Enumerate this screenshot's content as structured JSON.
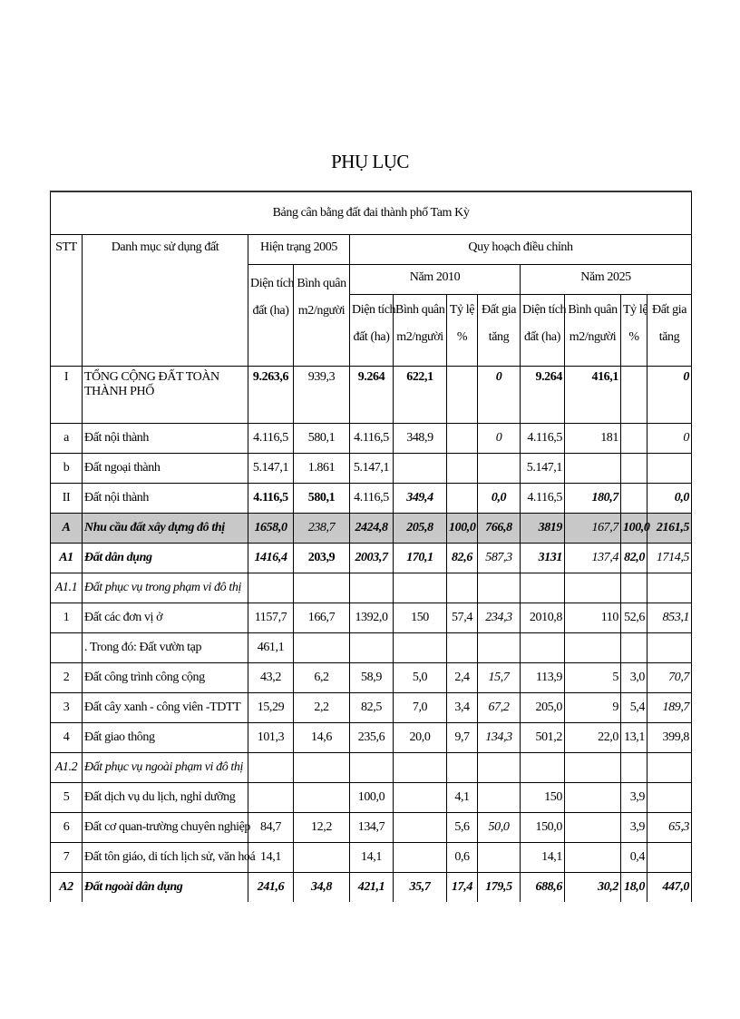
{
  "page_title": "PHỤ LỤC",
  "table": {
    "caption": "Bảng cân bằng đất đai thành phố Tam Kỳ",
    "headers": {
      "stt": "STT",
      "category": "Danh mục sử dụng đất",
      "current_2005": "Hiện trạng 2005",
      "adjusted_plan": "Quy hoạch điều chỉnh",
      "year_2010": "Năm 2010",
      "year_2025": "Năm 2025",
      "area_line1": "Diện tích",
      "area_line2": "đất (ha)",
      "avg_line1": "Bình quân",
      "avg_line2": "m2/người",
      "ratio_line1": "Tỷ lệ",
      "ratio_line2": "%",
      "increase_line1": "Đất gia",
      "increase_line2": "tăng"
    },
    "rows": [
      {
        "stt": "I",
        "name": "TỔNG CỘNG ĐẤT TOÀN THÀNH PHỐ",
        "v": [
          "9.263,6",
          "939,3",
          "9.264",
          "622,1",
          "",
          "0",
          "9.264",
          "416,1",
          "",
          "0"
        ]
      },
      {
        "stt": "a",
        "name": "Đất nội thành",
        "v": [
          "4.116,5",
          "580,1",
          "4.116,5",
          "348,9",
          "",
          "0",
          "4.116,5",
          "181",
          "",
          "0"
        ]
      },
      {
        "stt": "b",
        "name": "Đất ngoại thành",
        "v": [
          "5.147,1",
          "1.861",
          "5.147,1",
          "",
          "",
          "",
          "5.147,1",
          "",
          "",
          ""
        ]
      },
      {
        "stt": "II",
        "name": "Đất nội thành",
        "v": [
          "4.116,5",
          "580,1",
          "4.116,5",
          "349,4",
          "",
          "0,0",
          "4.116,5",
          "180,7",
          "",
          "0,0"
        ]
      },
      {
        "stt": "A",
        "name": "Nhu cầu đất xây dựng đô thị",
        "v": [
          "1658,0",
          "238,7",
          "2424,8",
          "205,8",
          "100,0",
          "766,8",
          "3819",
          "167,7",
          "100,0",
          "2161,5"
        ]
      },
      {
        "stt": "A1",
        "name": "Đất dân dụng",
        "v": [
          "1416,4",
          "203,9",
          "2003,7",
          "170,1",
          "82,6",
          "587,3",
          "3131",
          "137,4",
          "82,0",
          "1714,5"
        ]
      },
      {
        "stt": "A1.1",
        "name": "Đất phục vụ trong phạm vi đô thị",
        "v": [
          "",
          "",
          "",
          "",
          "",
          "",
          "",
          "",
          "",
          ""
        ]
      },
      {
        "stt": "1",
        "name": "Đất các đơn vị ở",
        "v": [
          "1157,7",
          "166,7",
          "1392,0",
          "150",
          "57,4",
          "234,3",
          "2010,8",
          "110",
          "52,6",
          "853,1"
        ]
      },
      {
        "stt": "",
        "name": ". Trong đó: Đất vườn tạp",
        "v": [
          "461,1",
          "",
          "",
          "",
          "",
          "",
          "",
          "",
          "",
          ""
        ]
      },
      {
        "stt": "2",
        "name": "Đất công trình  công cộng",
        "v": [
          "43,2",
          "6,2",
          "58,9",
          "5,0",
          "2,4",
          "15,7",
          "113,9",
          "5",
          "3,0",
          "70,7"
        ]
      },
      {
        "stt": "3",
        "name": "Đất cây xanh  - công viên -TDTT",
        "v": [
          "15,29",
          "2,2",
          "82,5",
          "7,0",
          "3,4",
          "67,2",
          "205,0",
          "9",
          "5,4",
          "189,7"
        ]
      },
      {
        "stt": "4",
        "name": "Đất giao  thông",
        "v": [
          "101,3",
          "14,6",
          "235,6",
          "20,0",
          "9,7",
          "134,3",
          "501,2",
          "22,0",
          "13,1",
          "399,8"
        ]
      },
      {
        "stt": "A1.2",
        "name": "Đất phục vụ ngoài phạm vi đô thị",
        "v": [
          "",
          "",
          "",
          "",
          "",
          "",
          "",
          "",
          "",
          ""
        ]
      },
      {
        "stt": "5",
        "name": "Đất dịch  vụ du lịch,  nghỉ  dưỡng",
        "v": [
          "",
          "",
          "100,0",
          "",
          "4,1",
          "",
          "150",
          "",
          "3,9",
          ""
        ]
      },
      {
        "stt": "6",
        "name": "Đất cơ quan-trường  chuyên  nghiệp",
        "v": [
          "84,7",
          "12,2",
          "134,7",
          "",
          "5,6",
          "50,0",
          "150,0",
          "",
          "3,9",
          "65,3"
        ]
      },
      {
        "stt": "7",
        "name": "Đất tôn giáo,  di tích lịch  sử, văn hoá",
        "v": [
          "14,1",
          "",
          "14,1",
          "",
          "0,6",
          "",
          "14,1",
          "",
          "0,4",
          ""
        ]
      },
      {
        "stt": "A2",
        "name": "Đất ngoài dân dụng",
        "v": [
          "241,6",
          "34,8",
          "421,1",
          "35,7",
          "17,4",
          "179,5",
          "688,6",
          "30,2",
          "18,0",
          "447,0"
        ]
      }
    ],
    "highlight_color": "#c8c8c8"
  }
}
